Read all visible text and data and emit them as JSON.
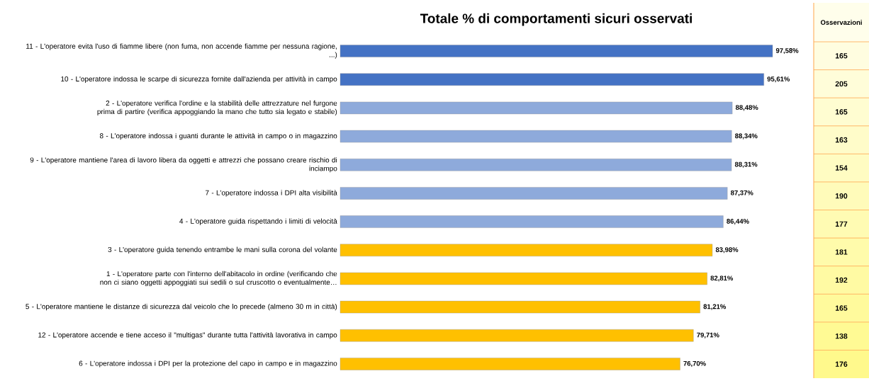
{
  "chart_data": [
    {
      "type": "bar",
      "orientation": "horizontal",
      "title": "Totale % di comportamenti sicuri osservati",
      "categories": [
        "11 - L'operatore evita l'uso di fiamme libere (non fuma, non accende fiamme per nessuna ragione, ...)",
        "10 - L'operatore indossa le scarpe di sicurezza fornite dall'azienda per attività in campo",
        "2 - L'operatore verifica l'ordine e la stabilità delle attrezzature nel furgone prima di partire (verifica appoggiando la mano che tutto sia legato e stabile)",
        "8 - L'operatore indossa i guanti durante le attività in campo o in magazzino",
        "9 - L'operatore mantiene l'area di lavoro libera da oggetti e attrezzi che possano creare rischio di inciampo",
        "7 - L'operatore indossa i DPI alta visibilità",
        "4 - L'operatore guida rispettando i limiti di velocità",
        "3 - L'operatore guida tenendo entrambe le mani sulla corona del volante",
        "1 - L'operatore parte con l'interno dell'abitacolo in ordine (verificando che non ci siano oggetti appoggiati sui sedili o sul cruscotto o eventualmente…",
        "5 - L'operatore mantiene le distanze di sicurezza dal veicolo che lo precede (almeno 30 m in città)",
        "12 - L'operatore accende e tiene acceso il \"multigas\" durante tutta l'attività lavorativa in campo",
        "6 - L'operatore indossa i DPI per la protezione del capo in campo e in magazzino"
      ],
      "values": [
        97.58,
        95.61,
        88.48,
        88.34,
        88.31,
        87.37,
        86.44,
        83.98,
        82.81,
        81.21,
        79.71,
        76.7
      ],
      "value_labels": [
        "97,58%",
        "95,61%",
        "88,48%",
        "88,34%",
        "88,31%",
        "87,37%",
        "86,44%",
        "83,98%",
        "82,81%",
        "81,21%",
        "79,71%",
        "76,70%"
      ],
      "colors": [
        "#4472c4",
        "#4472c4",
        "#8eaadb",
        "#8eaadb",
        "#8eaadb",
        "#8eaadb",
        "#8eaadb",
        "#ffc000",
        "#ffc000",
        "#ffc000",
        "#ffc000",
        "#ffc000"
      ]
    },
    {
      "type": "other",
      "title": "Osservazioni",
      "annotations": [
        "165",
        "205",
        "165",
        "163",
        "154",
        "190",
        "177",
        "181",
        "192",
        "165",
        "138",
        "176"
      ]
    }
  ]
}
